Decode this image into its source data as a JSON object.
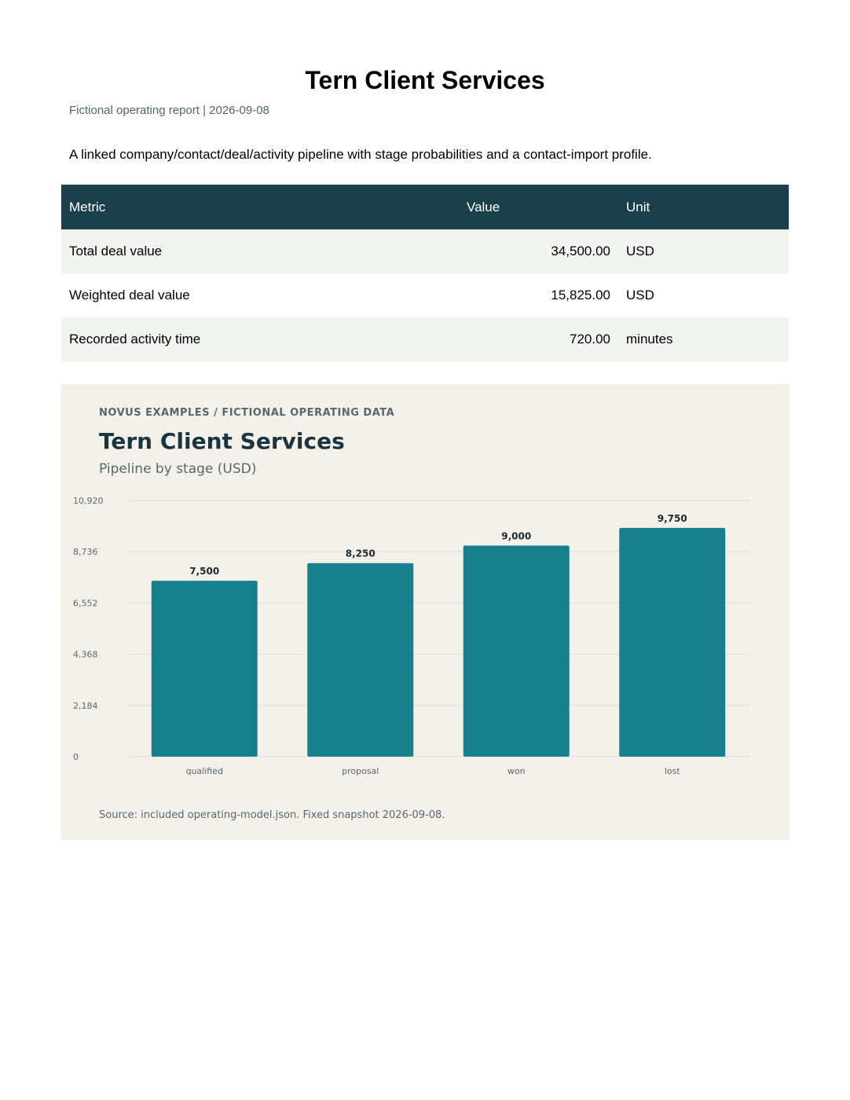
{
  "report": {
    "title": "Tern Client Services",
    "subtitle": "Fictional operating report | 2026-09-08",
    "description": "A linked company/contact/deal/activity pipeline with stage probabilities and a contact-import profile."
  },
  "metrics_table": {
    "headers": [
      "Metric",
      "Value",
      "Unit"
    ],
    "rows": [
      {
        "metric": "Total deal value",
        "value": "34,500.00",
        "unit": "USD"
      },
      {
        "metric": "Weighted deal value",
        "value": "15,825.00",
        "unit": "USD"
      },
      {
        "metric": "Recorded activity time",
        "value": "720.00",
        "unit": "minutes"
      }
    ]
  },
  "chart_card": {
    "kicker": "NOVUS EXAMPLES  /  FICTIONAL OPERATING DATA",
    "title": "Tern Client Services",
    "subtitle": "Pipeline by stage (USD)",
    "source": "Source: included operating-model.json. Fixed snapshot 2026-09-08."
  },
  "chart_data": {
    "type": "bar",
    "categories": [
      "qualified",
      "proposal",
      "won",
      "lost"
    ],
    "values": [
      7500,
      8250,
      9000,
      9750
    ],
    "value_labels": [
      "7,500",
      "8,250",
      "9,000",
      "9,750"
    ],
    "yticks": [
      0,
      2184,
      4368,
      6552,
      8736,
      10920
    ],
    "ytick_labels": [
      "0",
      "2,184",
      "4,368",
      "6,552",
      "8,736",
      "10,920"
    ],
    "ylim": [
      0,
      10920
    ],
    "grid": true,
    "colors": {
      "bar": "#187f8c",
      "grid": "#dcdfdc",
      "label": "#1a2a30",
      "tick": "#56686f"
    }
  }
}
